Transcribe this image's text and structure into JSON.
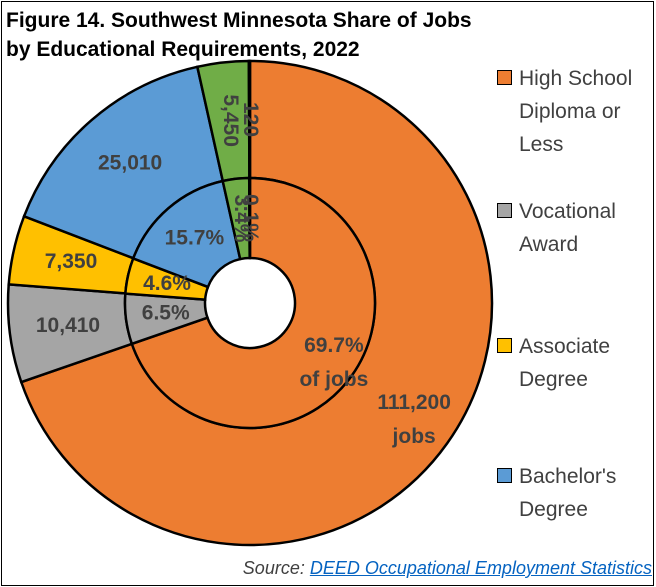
{
  "chart_data": {
    "type": "pie",
    "title": "Figure 14. Southwest Minnesota Share of Jobs by Educational Requirements, 2022",
    "categories": [
      "High School Diploma or Less",
      "Vocational Award",
      "Associate Degree",
      "Bachelor's Degree",
      null,
      null
    ],
    "colors": [
      "#ED7D31",
      "#A5A5A5",
      "#FFC000",
      "#5B9BD5",
      "#70AD47",
      "#2E75B6"
    ],
    "series": [
      {
        "values": [
          111200,
          10410,
          7350,
          25010,
          5450,
          120
        ],
        "value_labels": [
          "111,200\njobs",
          "10,410",
          "7,350",
          "25,010",
          "5,450",
          "120"
        ]
      },
      {
        "values": [
          69.7,
          6.5,
          4.6,
          15.7,
          3.4,
          0.1
        ],
        "value_labels": [
          "69.7%\nof jobs",
          "6.5%",
          "4.6%",
          "15.7%",
          "3.4%",
          "0.1%"
        ]
      }
    ],
    "source_label": "Source:",
    "source_link": "DEED Occupational Employment Statistics"
  }
}
